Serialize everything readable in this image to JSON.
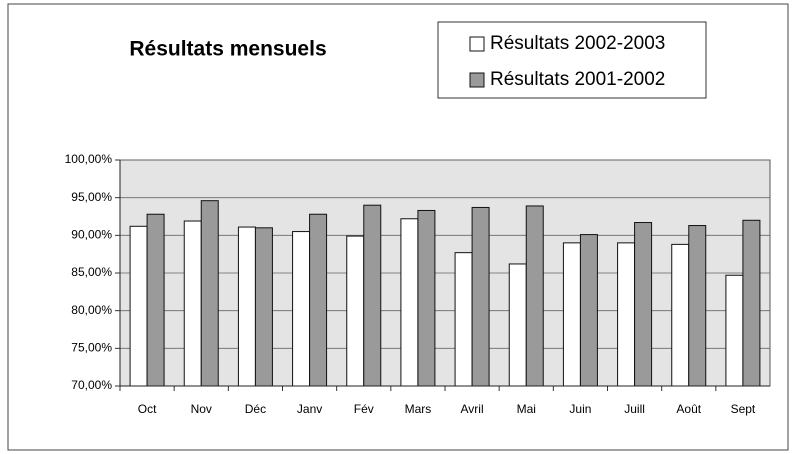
{
  "chart_data": {
    "type": "bar",
    "title": "Résultats mensuels",
    "categories": [
      "Oct",
      "Nov",
      "Déc",
      "Janv",
      "Fév",
      "Mars",
      "Avril",
      "Mai",
      "Juin",
      "Juill",
      "Août",
      "Sept"
    ],
    "series": [
      {
        "name": "Résultats 2002-2003",
        "color": "#ffffff",
        "values": [
          91.2,
          91.9,
          91.1,
          90.5,
          89.9,
          92.2,
          87.7,
          86.2,
          89.0,
          89.0,
          88.8,
          84.7
        ]
      },
      {
        "name": "Résultats 2001-2002",
        "color": "#9a9a9a",
        "values": [
          92.8,
          94.6,
          91.0,
          92.8,
          94.0,
          93.3,
          93.7,
          93.9,
          90.1,
          91.7,
          91.3,
          92.0
        ]
      }
    ],
    "ylim": [
      70,
      100
    ],
    "yticks": [
      {
        "value": 70,
        "label": "70,00%"
      },
      {
        "value": 75,
        "label": "75,00%"
      },
      {
        "value": 80,
        "label": "80,00%"
      },
      {
        "value": 85,
        "label": "85,00%"
      },
      {
        "value": 90,
        "label": "90,00%"
      },
      {
        "value": 95,
        "label": "95,00%"
      },
      {
        "value": 100,
        "label": "100,00%"
      }
    ],
    "grid": true
  }
}
